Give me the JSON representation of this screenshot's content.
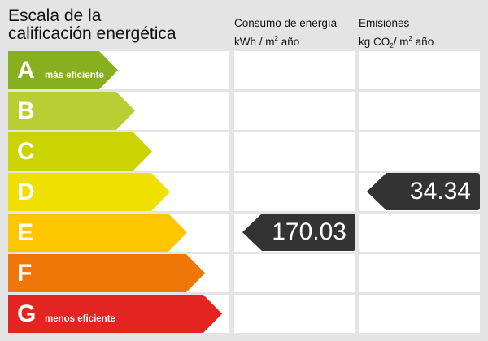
{
  "chart_data": {
    "type": "table",
    "title_line1": "Escala de la",
    "title_line2": "calificación energética",
    "columns": {
      "consumo": {
        "line1": "Consumo de energía",
        "unit_a": "kWh / m",
        "unit_sup": "2",
        "unit_b": " año"
      },
      "emisiones": {
        "line1": "Emisiones",
        "unit_a": "kg CO",
        "unit_sub": "2",
        "unit_b": "/ m",
        "unit_sup": "2",
        "unit_c": " año"
      }
    },
    "ratings": [
      {
        "letter": "A",
        "label": "más eficiente",
        "color": "#88b01e"
      },
      {
        "letter": "B",
        "label": "",
        "color": "#b8cf33"
      },
      {
        "letter": "C",
        "label": "",
        "color": "#cbd300"
      },
      {
        "letter": "D",
        "label": "",
        "color": "#f0e000"
      },
      {
        "letter": "E",
        "label": "",
        "color": "#fdc600"
      },
      {
        "letter": "F",
        "label": "",
        "color": "#ee7707"
      },
      {
        "letter": "G",
        "label": "menos eficiente",
        "color": "#e42421"
      }
    ],
    "consumo": {
      "value": "170.03",
      "rating": "E"
    },
    "emisiones": {
      "value": "34.34",
      "rating": "D"
    }
  }
}
